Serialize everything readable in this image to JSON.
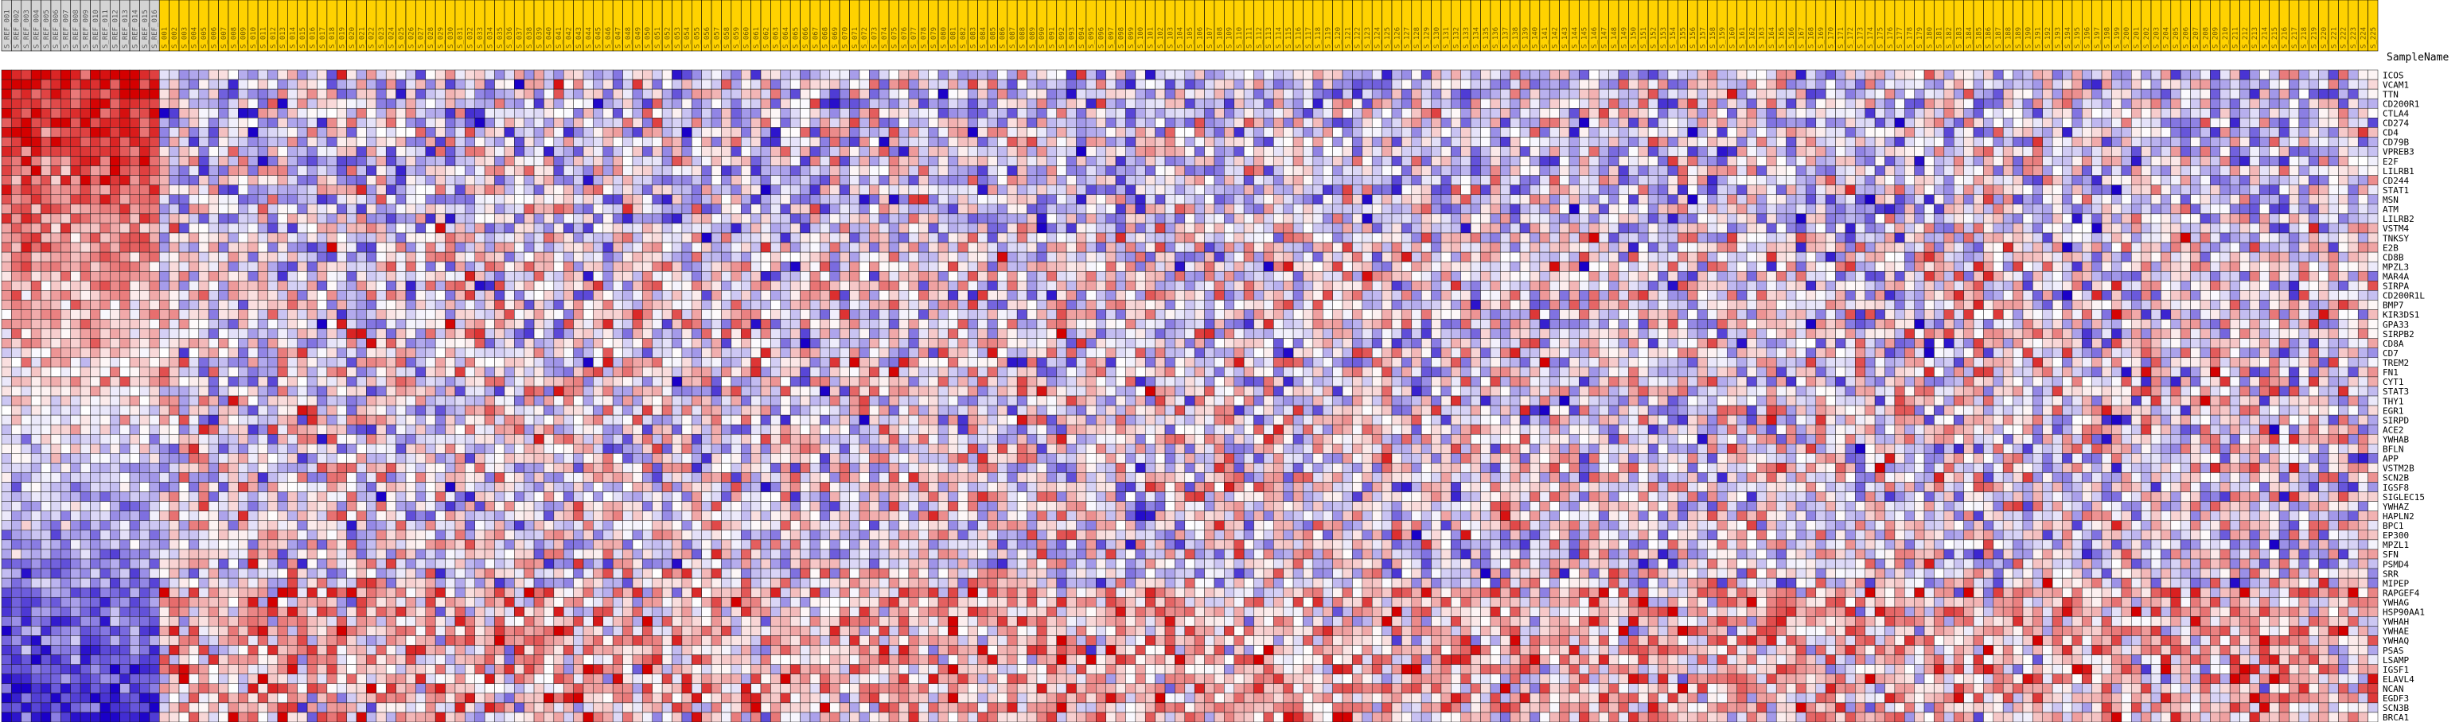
{
  "chart_data": {
    "type": "heatmap",
    "title": "",
    "column_header_label": "SampleName",
    "columns": {
      "group_counts": {
        "reference": 16,
        "comparison": 225
      },
      "reference_label_pattern": "S_REF_",
      "comparison_label_pattern": "S_"
    },
    "rows": [
      "ICOS",
      "VCAM1",
      "TTN",
      "CD200R1",
      "CTLA4",
      "CD274",
      "CD4",
      "CD79B",
      "VPREB3",
      "E2F",
      "LILRB1",
      "CD244",
      "STAT1",
      "MSN",
      "ATM",
      "LILRB2",
      "VSTM4",
      "TNKSY",
      "E2B",
      "CD8B",
      "MPZL3",
      "MAR4A",
      "SIRPA",
      "CD200R1L",
      "BMP7",
      "KIR3DS1",
      "GPA33",
      "SIRPB2",
      "CD8A",
      "CD7",
      "TREM2",
      "FN1",
      "CYT1",
      "STAT3",
      "THY1",
      "EGR1",
      "SIRPD",
      "ACE2",
      "YWHAB",
      "BFLN",
      "APP",
      "VSTM2B",
      "SCN2B",
      "IGSF8",
      "SIGLEC15",
      "YWHAZ",
      "HAPLN2",
      "BPC1",
      "EP300",
      "MPZL1",
      "SFN",
      "PSMD4",
      "SRR",
      "MIPEP",
      "RAPGEF4",
      "YWHAG",
      "HSP90AA1",
      "YWHAH",
      "YWHAE",
      "YWHAQ",
      "PSAS",
      "LSAMP",
      "IGSF1",
      "ELAVL4",
      "NCAN",
      "EGDF3",
      "SCN3B",
      "BRCA1"
    ],
    "value_range": [
      -2,
      2
    ],
    "color_scale": {
      "low": "#1a00c8",
      "mid": "#ffffff",
      "high": "#d40000"
    },
    "cell_values": "row-wise z-scores of expression; dense matrix of 68 genes x 241 samples, reference samples (left block) strongly elevated (red) for top genes and depressed (blue) for bottom genes; comparison samples mostly mixed near zero"
  },
  "colors": {
    "reference_header": "#d4d4d4",
    "comparison_header": "#ffd200",
    "grid": "#000000"
  }
}
